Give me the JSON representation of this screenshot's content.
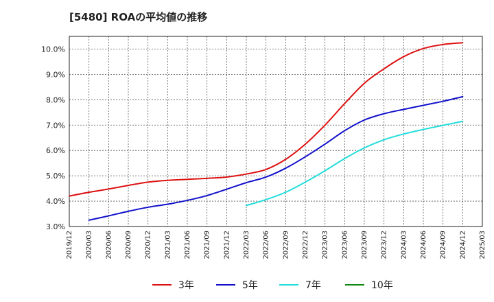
{
  "chart_data": {
    "type": "line",
    "title": "[5480]  ROAの平均値の推移",
    "x": [
      "2019/12",
      "2020/03",
      "2020/06",
      "2020/09",
      "2020/12",
      "2021/03",
      "2021/06",
      "2021/09",
      "2021/12",
      "2022/03",
      "2022/06",
      "2022/09",
      "2022/12",
      "2023/03",
      "2023/06",
      "2023/09",
      "2023/12",
      "2024/03",
      "2024/06",
      "2024/09",
      "2024/12",
      "2025/03"
    ],
    "y_ticks": [
      "3.0%",
      "4.0%",
      "5.0%",
      "6.0%",
      "7.0%",
      "8.0%",
      "9.0%",
      "10.0%"
    ],
    "ylim": [
      3.0,
      10.5
    ],
    "grid": true,
    "legend_position": "bottom",
    "series": [
      {
        "name": "3年",
        "color": "#dd1111",
        "values": [
          4.2,
          4.35,
          4.48,
          4.62,
          4.75,
          4.82,
          4.86,
          4.9,
          4.95,
          5.07,
          5.25,
          5.65,
          6.25,
          7.0,
          7.85,
          8.65,
          9.22,
          9.7,
          10.02,
          10.18,
          10.25,
          null
        ]
      },
      {
        "name": "5年",
        "color": "#1111cc",
        "values": [
          null,
          3.25,
          3.42,
          3.6,
          3.76,
          3.88,
          4.03,
          4.22,
          4.47,
          4.73,
          4.95,
          5.3,
          5.75,
          6.25,
          6.78,
          7.2,
          7.45,
          7.62,
          7.78,
          7.94,
          8.12,
          null
        ]
      },
      {
        "name": "7年",
        "color": "#22dddd",
        "values": [
          null,
          null,
          null,
          null,
          null,
          null,
          null,
          null,
          null,
          3.83,
          4.06,
          4.35,
          4.75,
          5.2,
          5.68,
          6.1,
          6.42,
          6.65,
          6.83,
          6.99,
          7.15,
          null
        ]
      },
      {
        "name": "10年",
        "color": "#118811",
        "values": [
          null,
          null,
          null,
          null,
          null,
          null,
          null,
          null,
          null,
          null,
          null,
          null,
          null,
          null,
          null,
          null,
          null,
          null,
          null,
          null,
          null,
          null
        ]
      }
    ]
  }
}
